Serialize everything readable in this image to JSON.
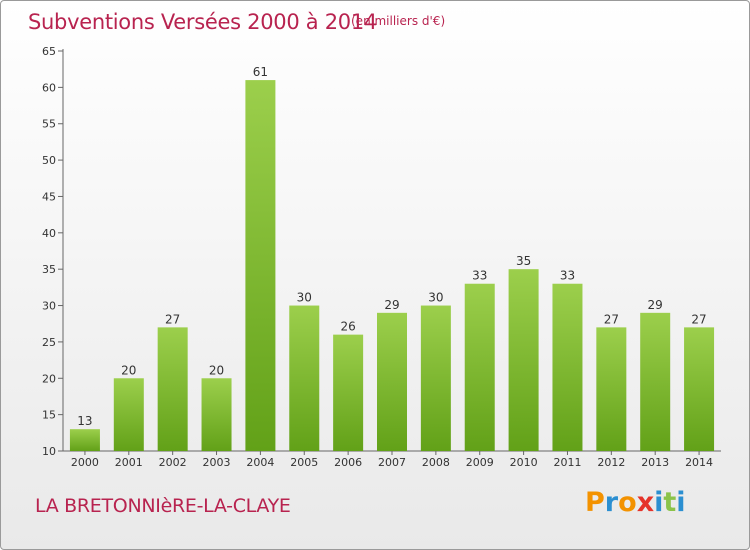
{
  "header": {
    "title": "Subventions Versées 2000 à 2014",
    "unit_note": "(en milliers d'€)"
  },
  "footer": {
    "commune": "LA BRETONNIèRE-LA-CLAYE",
    "logo_letters": [
      "P",
      "r",
      "o",
      "x",
      "i",
      "t",
      "i"
    ],
    "logo_colors": [
      "#f39200",
      "#2b8fd1",
      "#f39200",
      "#e5332a",
      "#2b8fd1",
      "#8bc34a",
      "#2b8fd1"
    ]
  },
  "colors": {
    "bar_top": "#9ccf4c",
    "bar_bottom": "#62a118",
    "title": "#b8234f"
  },
  "chart_data": {
    "type": "bar",
    "title": "Subventions Versées 2000 à 2014",
    "subtitle": "(en milliers d'€)",
    "xlabel": "",
    "ylabel": "",
    "categories": [
      "2000",
      "2001",
      "2002",
      "2003",
      "2004",
      "2005",
      "2006",
      "2007",
      "2008",
      "2009",
      "2010",
      "2011",
      "2012",
      "2013",
      "2014"
    ],
    "values": [
      13,
      20,
      27,
      20,
      61,
      30,
      26,
      29,
      30,
      33,
      35,
      33,
      27,
      29,
      27
    ],
    "ylim": [
      10,
      65
    ],
    "yticks": [
      10,
      15,
      20,
      25,
      30,
      35,
      40,
      45,
      50,
      55,
      60,
      65
    ],
    "grid": false,
    "data_labels": true
  }
}
